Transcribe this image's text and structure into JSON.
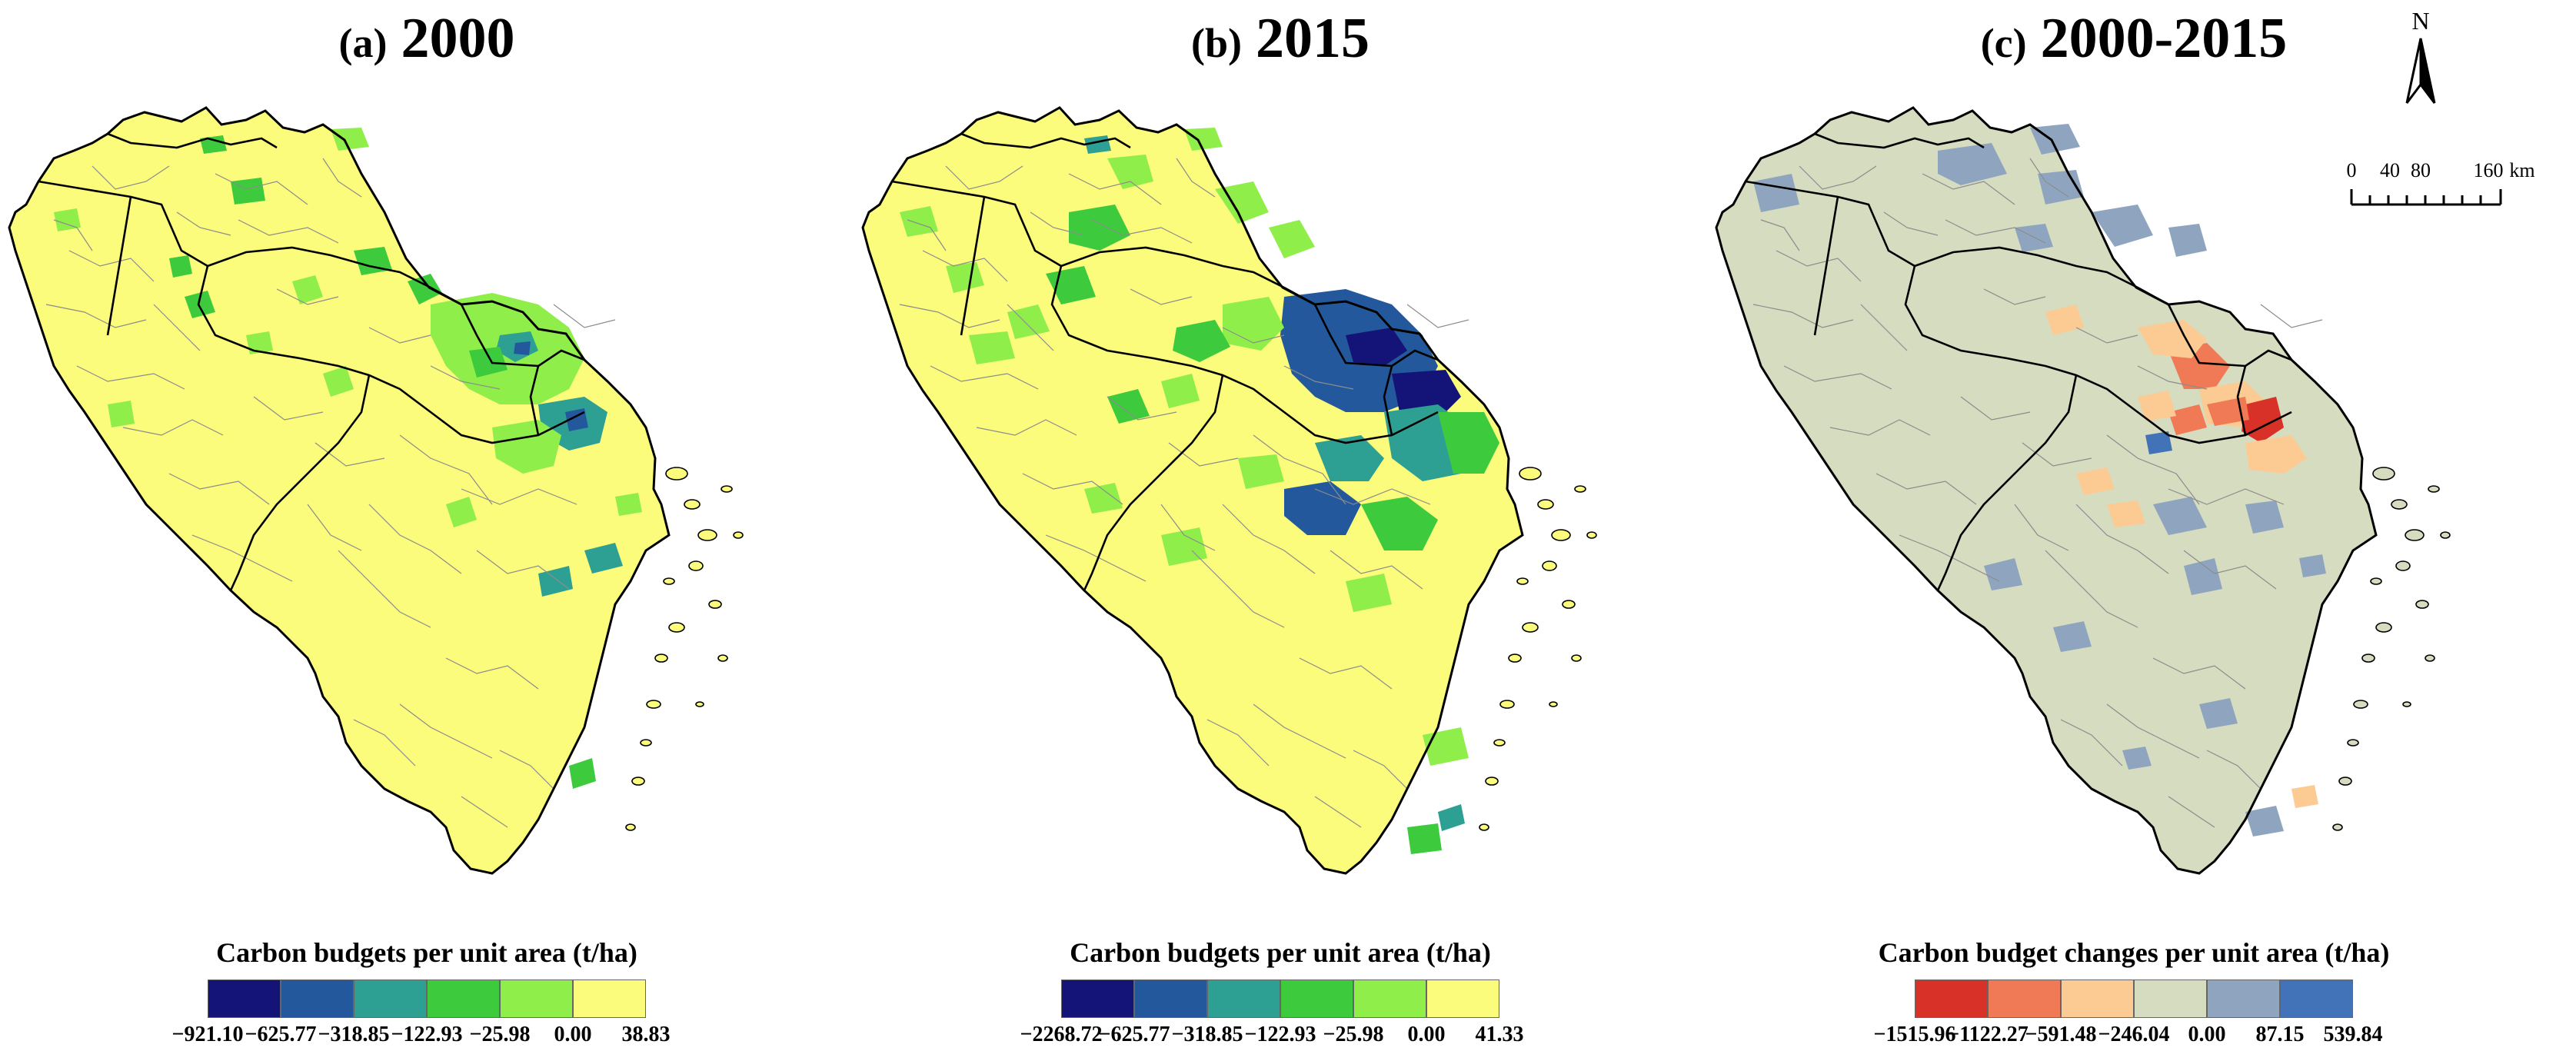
{
  "panels": [
    {
      "label": "(a)",
      "year": "2000",
      "legend_title": "Carbon budgets per unit area (t/ha)",
      "legend_colors": [
        "#141478",
        "#24589c",
        "#2ea093",
        "#3dcb3d",
        "#8fee4a",
        "#fbfb7c"
      ],
      "legend_ticks": [
        "−921.10",
        "−625.77",
        "−318.85",
        "−122.93",
        "−25.98",
        "0.00",
        "38.83"
      ]
    },
    {
      "label": "(b)",
      "year": "2015",
      "legend_title": "Carbon budgets per unit area (t/ha)",
      "legend_colors": [
        "#141478",
        "#24589c",
        "#2ea093",
        "#3dcb3d",
        "#8fee4a",
        "#fbfb7c"
      ],
      "legend_ticks": [
        "−2268.72",
        "−625.77",
        "−318.85",
        "−122.93",
        "−25.98",
        "0.00",
        "41.33"
      ]
    },
    {
      "label": "(c)",
      "year": "2000-2015",
      "legend_title": "Carbon budget changes per unit area (t/ha)",
      "legend_colors": [
        "#d83228",
        "#ef7a55",
        "#fccb94",
        "#d6dcbf",
        "#8fa5bf",
        "#4273b8"
      ],
      "legend_ticks": [
        "−1515.96",
        "−1122.27",
        "−591.48",
        "−246.04",
        "0.00",
        "87.15",
        "539.84"
      ]
    }
  ],
  "north_arrow": {
    "label": "N"
  },
  "scale_bar": {
    "labels": [
      "0",
      "40",
      "80",
      "160"
    ],
    "unit": "km"
  }
}
